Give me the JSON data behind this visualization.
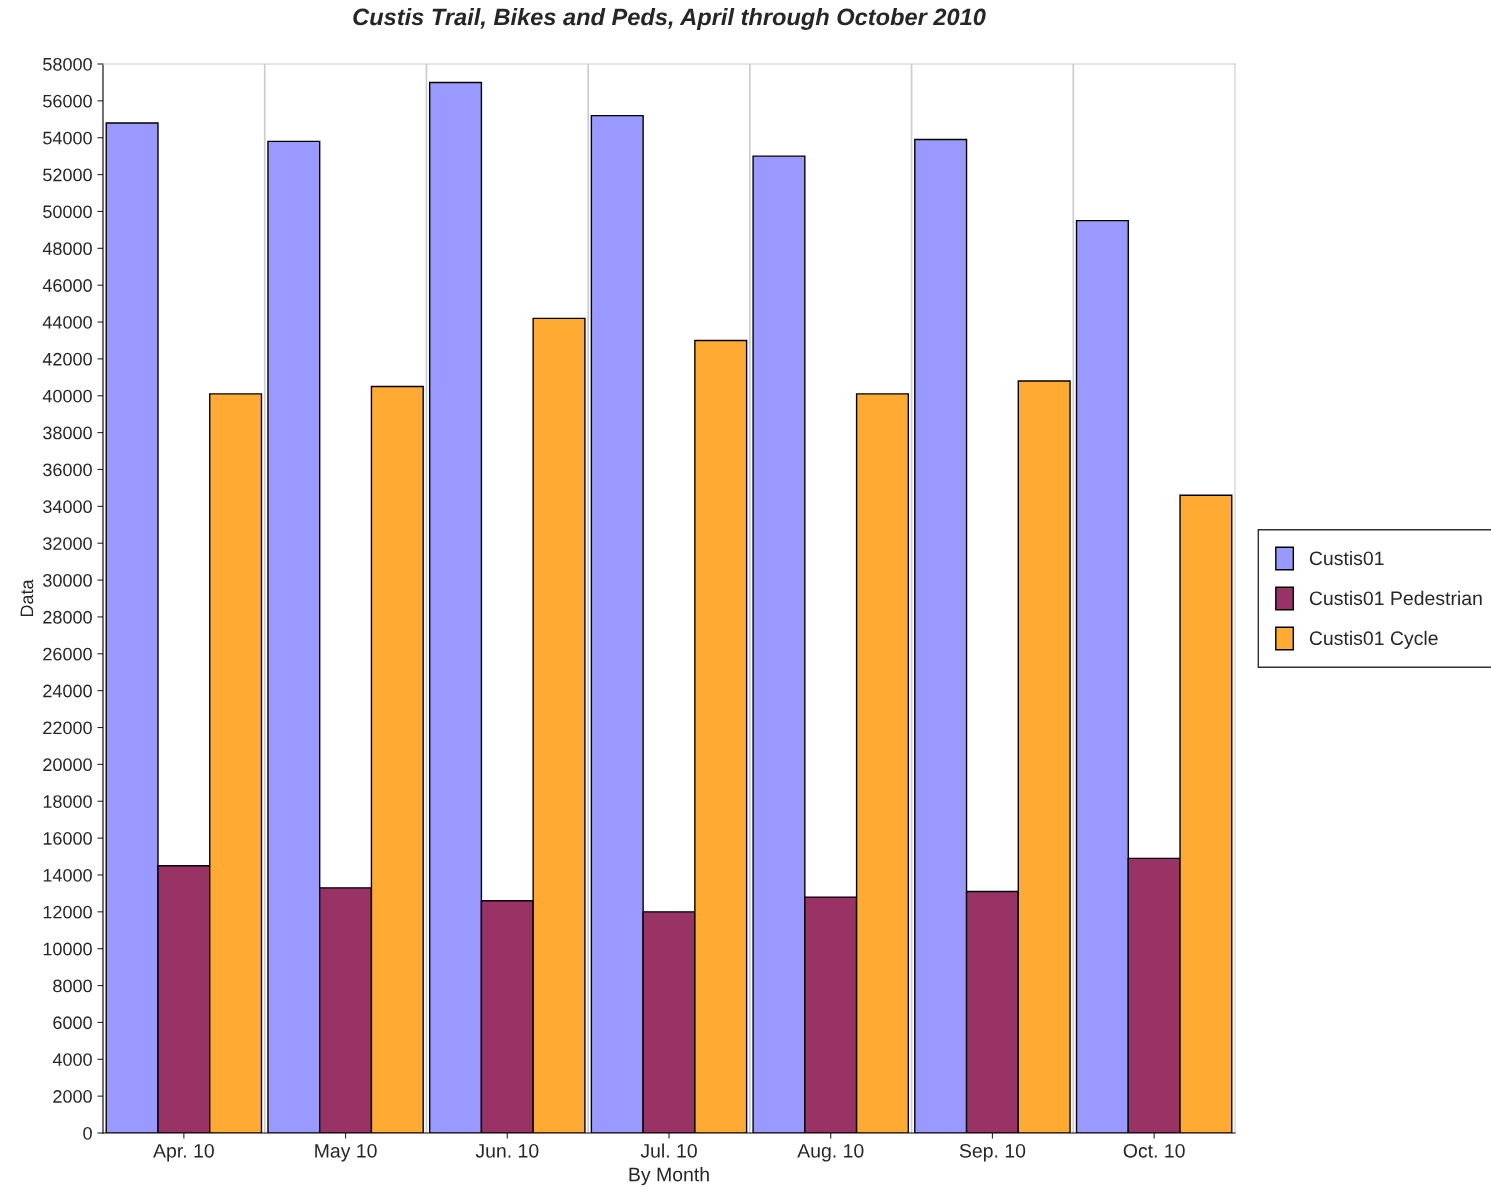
{
  "chart_data": {
    "type": "bar",
    "title": "Custis Trail, Bikes and Peds, April through October 2010",
    "xlabel": "By Month",
    "ylabel": "Data",
    "categories": [
      "Apr. 10",
      "May 10",
      "Jun. 10",
      "Jul. 10",
      "Aug. 10",
      "Sep. 10",
      "Oct. 10"
    ],
    "series": [
      {
        "name": "Custis01",
        "color": "#9999ff",
        "values": [
          54800,
          53800,
          57000,
          55200,
          53000,
          53900,
          49500
        ]
      },
      {
        "name": "Custis01 Pedestrian",
        "color": "#993366",
        "values": [
          14500,
          13300,
          12600,
          12000,
          12800,
          13100,
          14900
        ]
      },
      {
        "name": "Custis01 Cycle",
        "color": "#ffaa33",
        "values": [
          40100,
          40500,
          44200,
          43000,
          40100,
          40800,
          34600
        ]
      }
    ],
    "ylim": [
      0,
      58000
    ],
    "yticks": [
      0,
      2000,
      4000,
      6000,
      8000,
      10000,
      12000,
      14000,
      16000,
      18000,
      20000,
      22000,
      24000,
      26000,
      28000,
      30000,
      32000,
      34000,
      36000,
      38000,
      40000,
      42000,
      44000,
      46000,
      48000,
      50000,
      52000,
      54000,
      56000,
      58000
    ],
    "grid": "x",
    "legend": "right"
  }
}
